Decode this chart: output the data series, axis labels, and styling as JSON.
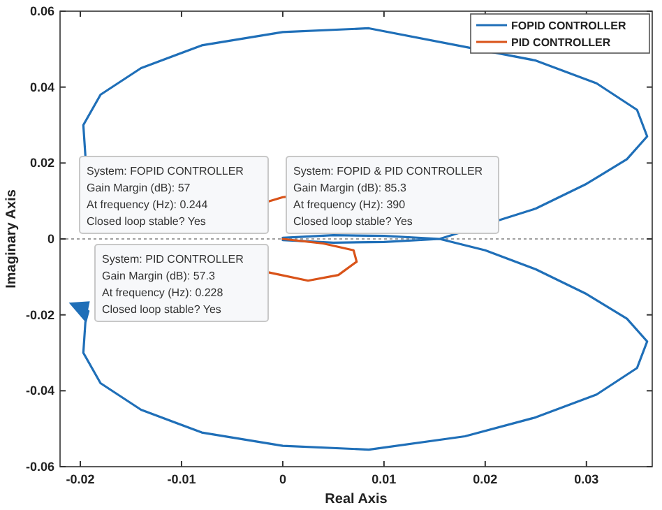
{
  "chart_data": {
    "type": "line",
    "xlabel": "Real Axis",
    "ylabel": "Imaginary Axis",
    "xlim": [
      -0.022,
      0.0365
    ],
    "xticks": [
      -0.02,
      -0.01,
      0,
      0.01,
      0.02,
      0.03
    ],
    "ylim": [
      -0.06,
      0.06
    ],
    "yticks": [
      -0.06,
      -0.04,
      -0.02,
      0,
      0.02,
      0.04,
      0.06
    ],
    "grid": false,
    "legend": "top right",
    "marker": "none",
    "line_style": "solid",
    "series": [
      {
        "name": "FOPID CONTROLLER",
        "color": "#1f6fb8",
        "x": [
          -0.0195,
          -0.0197,
          -0.018,
          -0.014,
          -0.008,
          0,
          0.0085,
          0.025,
          0.031,
          0.035,
          0.036,
          0.034,
          0.03,
          0.025,
          0.0155,
          0.01,
          0.005,
          0,
          null,
          0,
          0.005,
          0.01,
          0.0155,
          0.02,
          0.025,
          0.03,
          0.034,
          0.036,
          0.035,
          0.031,
          0.025,
          0.018,
          0.0085,
          0,
          -0.008,
          -0.014,
          -0.018,
          -0.0197,
          -0.0195,
          -0.0192
        ],
        "values": [
          0.022,
          0.03,
          0.038,
          0.045,
          0.051,
          0.0545,
          0.0555,
          0.047,
          0.041,
          0.034,
          0.027,
          0.021,
          0.0145,
          0.008,
          0,
          0.0008,
          0.001,
          0.0003,
          null,
          -0.0003,
          -0.001,
          -0.0008,
          0,
          -0.003,
          -0.008,
          -0.0145,
          -0.021,
          -0.027,
          -0.034,
          -0.041,
          -0.047,
          -0.052,
          -0.0555,
          -0.0545,
          -0.051,
          -0.045,
          -0.038,
          -0.03,
          -0.022,
          -0.019
        ]
      },
      {
        "name": "PID CONTROLLER",
        "color": "#d95319",
        "x": [
          -0.0015,
          0,
          0.0004,
          null,
          0,
          0.004,
          0.007,
          0.0073,
          0.0055,
          0.0025,
          -0.0014
        ],
        "values": [
          0.0098,
          0.011,
          0.0111,
          null,
          0,
          -0.0012,
          -0.003,
          -0.006,
          -0.0095,
          -0.011,
          -0.0088
        ]
      }
    ],
    "ref_lines": [
      {
        "axis": "y",
        "value": 0,
        "color": "#a0a0a0",
        "line_style": "dotted"
      }
    ],
    "annotations": [
      "System: FOPID CONTROLLER\nGain Margin (dB): 57\nAt frequency (Hz): 0.244\nClosed loop stable? Yes",
      "System: FOPID & PID CONTROLLER\nGain Margin (dB): 85.3\nAt frequency (Hz): 390\nClosed loop stable? Yes",
      "System: PID CONTROLLER\nGain Margin (dB): 57.3\nAt frequency (Hz): 0.228\nClosed loop stable? Yes"
    ]
  }
}
